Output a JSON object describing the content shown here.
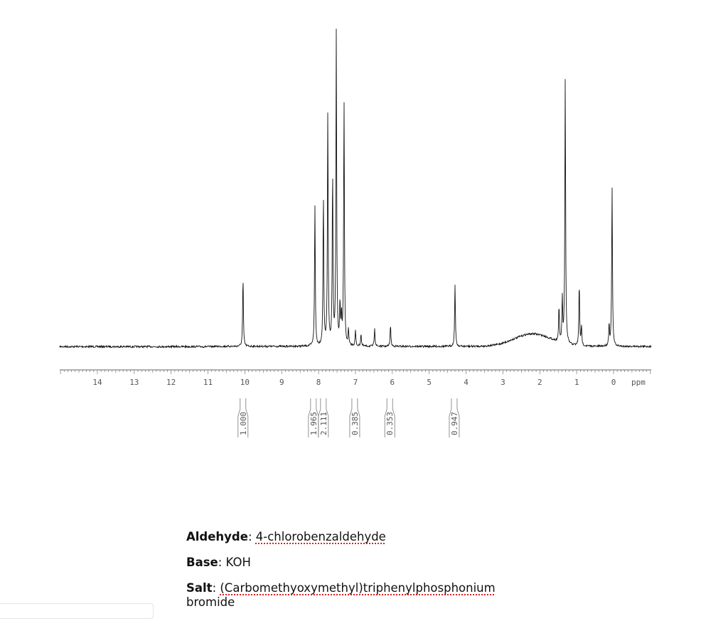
{
  "chart_data": {
    "type": "line",
    "title": "",
    "xlabel": "ppm",
    "ylabel": "",
    "xlim": [
      15.0,
      -1.0
    ],
    "x_reversed": true,
    "x_ticks": [
      "14",
      "13",
      "12",
      "11",
      "10",
      "9",
      "8",
      "7",
      "6",
      "5",
      "4",
      "3",
      "2",
      "1",
      "0"
    ],
    "grid": false,
    "peaks": [
      {
        "ppm": 10.05,
        "intensity": 22
      },
      {
        "ppm": 8.1,
        "intensity": 45
      },
      {
        "ppm": 7.87,
        "intensity": 48
      },
      {
        "ppm": 7.75,
        "intensity": 75
      },
      {
        "ppm": 7.62,
        "intensity": 55
      },
      {
        "ppm": 7.52,
        "intensity": 100
      },
      {
        "ppm": 7.42,
        "intensity": 13
      },
      {
        "ppm": 7.38,
        "intensity": 9
      },
      {
        "ppm": 7.31,
        "intensity": 79
      },
      {
        "ppm": 7.19,
        "intensity": 5
      },
      {
        "ppm": 7.0,
        "intensity": 5
      },
      {
        "ppm": 6.85,
        "intensity": 4
      },
      {
        "ppm": 6.48,
        "intensity": 6
      },
      {
        "ppm": 6.05,
        "intensity": 7
      },
      {
        "ppm": 4.3,
        "intensity": 20
      },
      {
        "ppm": 1.48,
        "intensity": 11
      },
      {
        "ppm": 1.39,
        "intensity": 14
      },
      {
        "ppm": 1.31,
        "intensity": 85
      },
      {
        "ppm": 0.93,
        "intensity": 20
      },
      {
        "ppm": 0.87,
        "intensity": 6
      },
      {
        "ppm": 0.12,
        "intensity": 7
      },
      {
        "ppm": 0.04,
        "intensity": 51
      }
    ],
    "broad_hump": {
      "ppm": 2.2,
      "intensity": 4
    },
    "integrals": [
      {
        "ppm": 10.05,
        "value": "1.000"
      },
      {
        "ppm": 8.14,
        "value": "1.965"
      },
      {
        "ppm": 7.87,
        "value": "2.111"
      },
      {
        "ppm": 7.02,
        "value": "0.385"
      },
      {
        "ppm": 6.07,
        "value": "0.353"
      },
      {
        "ppm": 4.32,
        "value": "0.947"
      }
    ]
  },
  "notes": {
    "aldehyde_label": "Aldehyde",
    "aldehyde_value": "4-chlorobenzaldehyde",
    "base_label": "Base",
    "base_value": "KOH",
    "salt_label": "Salt",
    "salt_value": "(Carbomethyoxymethyl)triphenylphosphonium",
    "salt_value_cont": "bromide"
  },
  "colors": {
    "spectrum": "#111111",
    "axis": "#666666",
    "spellcheck": "#e02020"
  }
}
